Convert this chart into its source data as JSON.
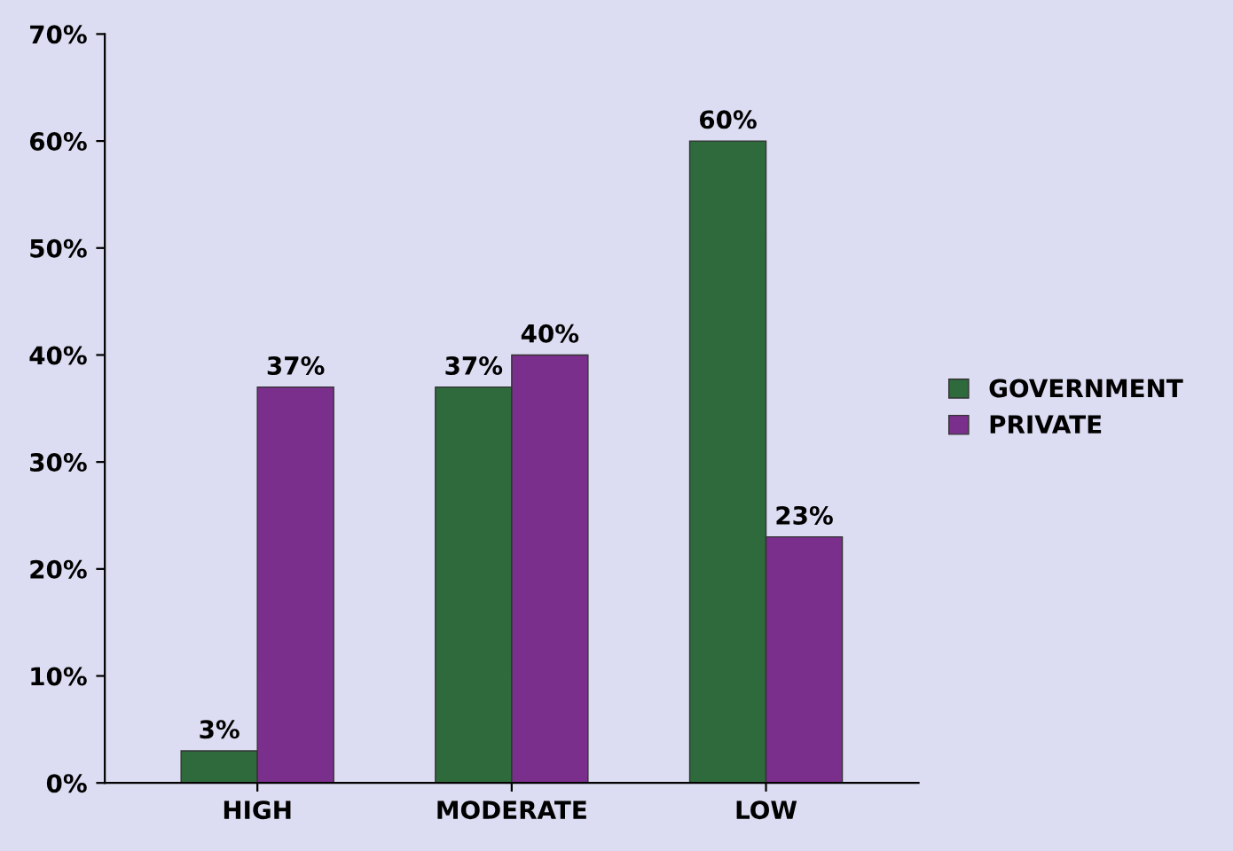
{
  "chart_data": {
    "type": "bar",
    "categories": [
      "HIGH",
      "MODERATE",
      "LOW"
    ],
    "series": [
      {
        "name": "GOVERNMENT",
        "color": "#2e6a3c",
        "values": [
          3,
          37,
          60
        ],
        "value_labels": [
          "3%",
          "37%",
          "60%"
        ]
      },
      {
        "name": "PRIVATE",
        "color": "#7b2f8c",
        "values": [
          37,
          40,
          23
        ],
        "value_labels": [
          "37%",
          "40%",
          "23%"
        ]
      }
    ],
    "ylim": [
      0,
      70
    ],
    "yticks": [
      {
        "value": 0,
        "label": "0%"
      },
      {
        "value": 10,
        "label": "10%"
      },
      {
        "value": 20,
        "label": "20%"
      },
      {
        "value": 30,
        "label": "30%"
      },
      {
        "value": 40,
        "label": "40%"
      },
      {
        "value": 50,
        "label": "50%"
      },
      {
        "value": 60,
        "label": "60%"
      },
      {
        "value": 70,
        "label": "70%"
      }
    ],
    "grid": false,
    "legend": "right"
  }
}
